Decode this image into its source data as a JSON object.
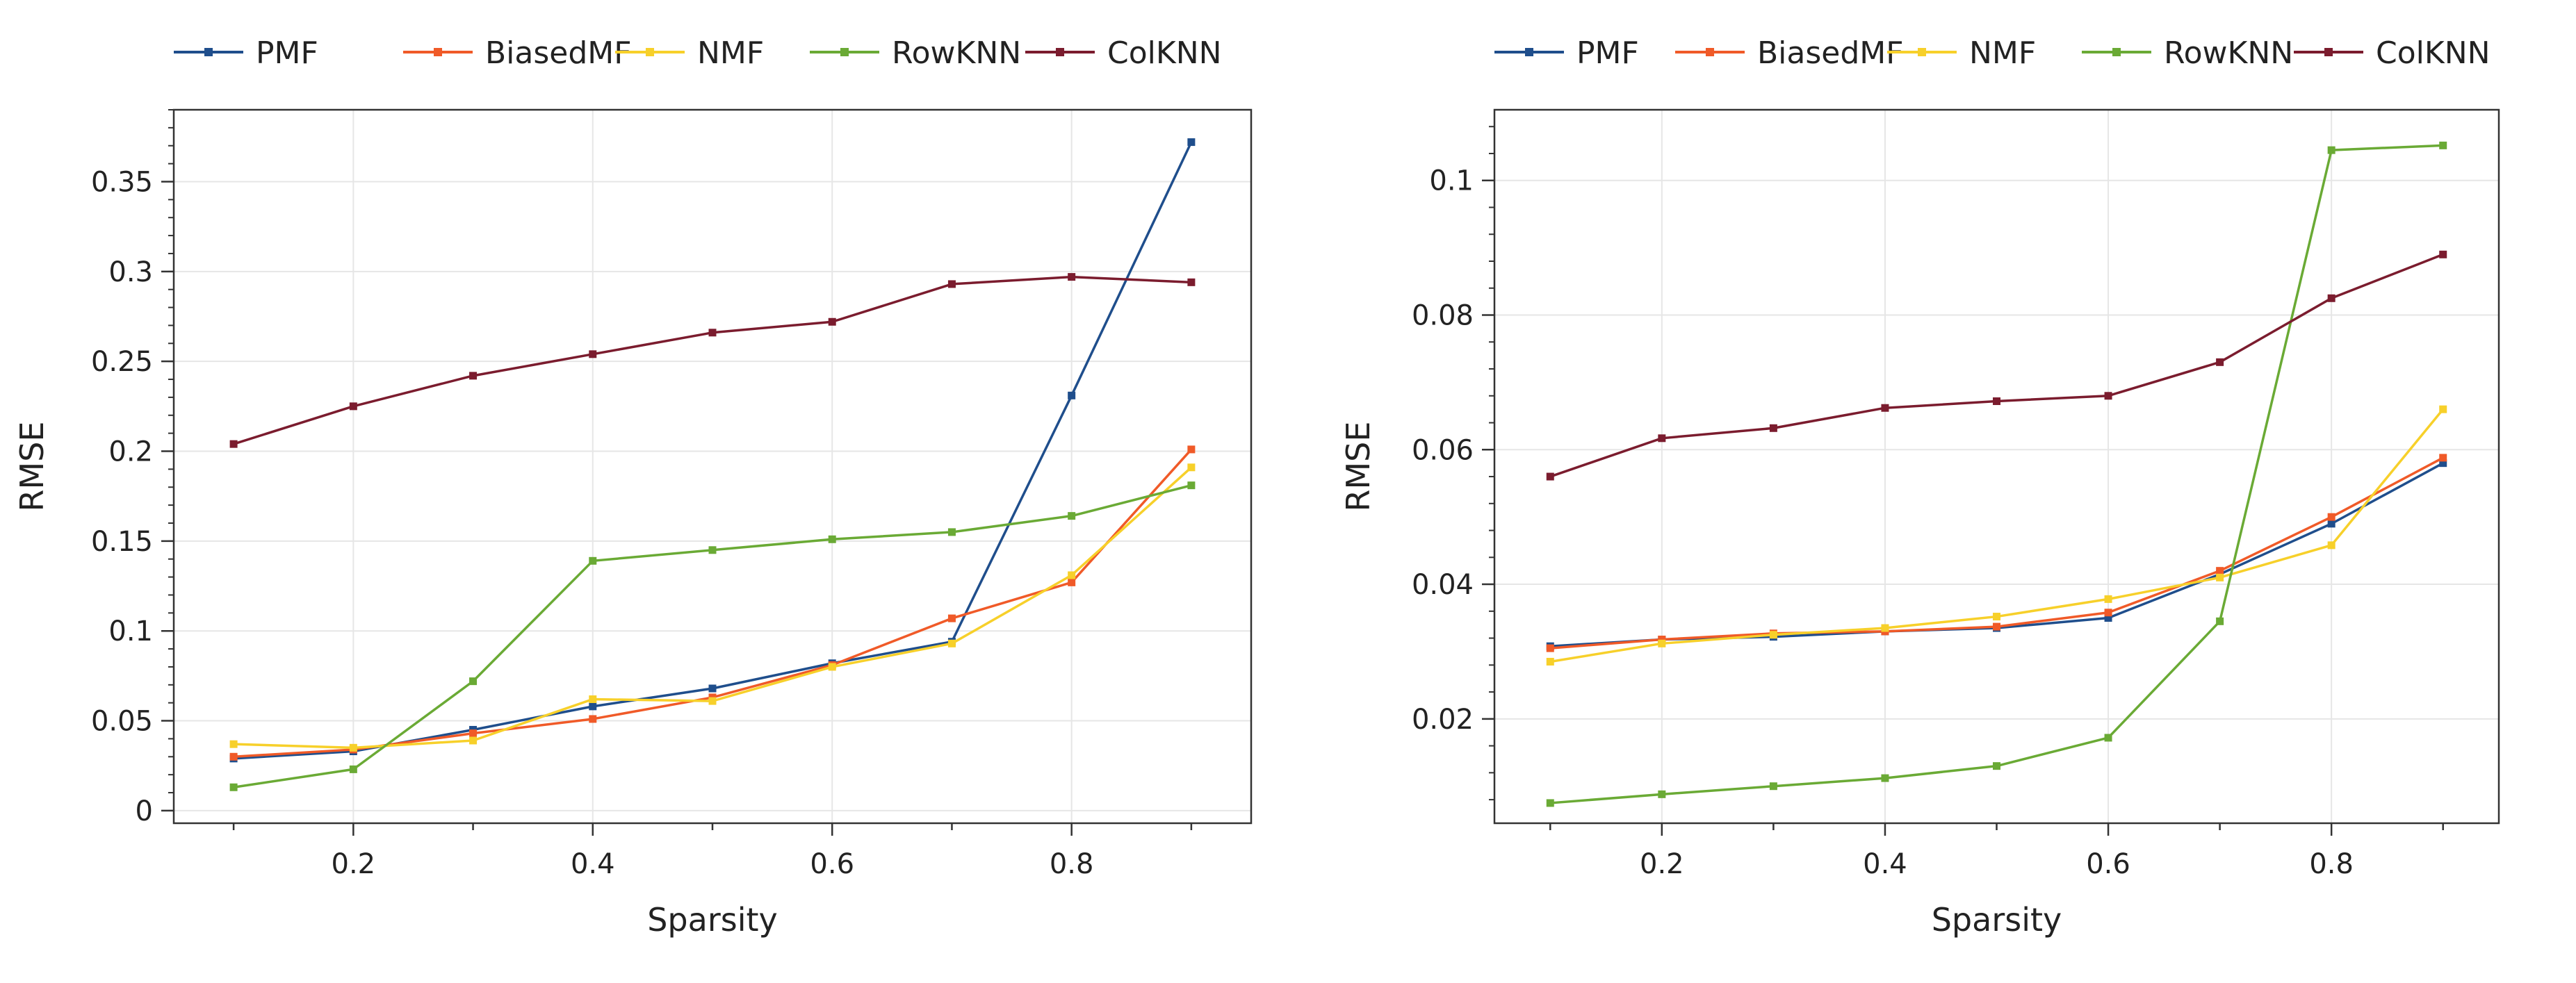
{
  "chart_data": [
    {
      "type": "line",
      "title": "",
      "xlabel": "Sparsity",
      "ylabel": "RMSE",
      "xlim": [
        0.05,
        0.95
      ],
      "ylim": [
        -0.007,
        0.39
      ],
      "xticks": [
        0.2,
        0.4,
        0.6,
        0.8
      ],
      "xtick_labels": [
        "0.2",
        "0.4",
        "0.6",
        "0.8"
      ],
      "yticks": [
        0,
        0.05,
        0.1,
        0.15,
        0.2,
        0.25,
        0.3,
        0.35
      ],
      "ytick_labels": [
        "0",
        "0.05",
        "0.1",
        "0.15",
        "0.2",
        "0.25",
        "0.3",
        "0.35"
      ],
      "grid": true,
      "legend_position": "top",
      "x": [
        0.1,
        0.2,
        0.3,
        0.4,
        0.5,
        0.6,
        0.7,
        0.8,
        0.9
      ],
      "series": [
        {
          "name": "PMF",
          "color": "#1f4e8c",
          "values": [
            0.029,
            0.033,
            0.045,
            0.058,
            0.068,
            0.082,
            0.094,
            0.231,
            0.372
          ]
        },
        {
          "name": "BiasedMF",
          "color": "#f05a28",
          "values": [
            0.03,
            0.034,
            0.043,
            0.051,
            0.063,
            0.081,
            0.107,
            0.127,
            0.201
          ]
        },
        {
          "name": "NMF",
          "color": "#f7d02a",
          "values": [
            0.037,
            0.035,
            0.039,
            0.062,
            0.061,
            0.08,
            0.093,
            0.131,
            0.191
          ]
        },
        {
          "name": "RowKNN",
          "color": "#6aaa35",
          "values": [
            0.013,
            0.023,
            0.072,
            0.139,
            0.145,
            0.151,
            0.155,
            0.164,
            0.181
          ]
        },
        {
          "name": "ColKNN",
          "color": "#7b1c2e",
          "values": [
            0.204,
            0.225,
            0.242,
            0.254,
            0.266,
            0.272,
            0.293,
            0.297,
            0.294
          ]
        }
      ]
    },
    {
      "type": "line",
      "title": "",
      "xlabel": "Sparsity",
      "ylabel": "RMSE",
      "xlim": [
        0.05,
        0.95
      ],
      "ylim": [
        0.0045,
        0.1105
      ],
      "xticks": [
        0.2,
        0.4,
        0.6,
        0.8
      ],
      "xtick_labels": [
        "0.2",
        "0.4",
        "0.6",
        "0.8"
      ],
      "yticks": [
        0.02,
        0.04,
        0.06,
        0.08,
        0.1
      ],
      "ytick_labels": [
        "0.02",
        "0.04",
        "0.06",
        "0.08",
        "0.1"
      ],
      "grid": true,
      "legend_position": "top",
      "x": [
        0.1,
        0.2,
        0.3,
        0.4,
        0.5,
        0.6,
        0.7,
        0.8,
        0.9
      ],
      "series": [
        {
          "name": "PMF",
          "color": "#1f4e8c",
          "values": [
            0.0308,
            0.0318,
            0.0322,
            0.033,
            0.0335,
            0.035,
            0.0415,
            0.049,
            0.058
          ]
        },
        {
          "name": "BiasedMF",
          "color": "#f05a28",
          "values": [
            0.0305,
            0.0318,
            0.0327,
            0.033,
            0.0337,
            0.0358,
            0.042,
            0.05,
            0.0588
          ]
        },
        {
          "name": "NMF",
          "color": "#f7d02a",
          "values": [
            0.0285,
            0.0312,
            0.0325,
            0.0335,
            0.0352,
            0.0378,
            0.041,
            0.0458,
            0.066
          ]
        },
        {
          "name": "RowKNN",
          "color": "#6aaa35",
          "values": [
            0.0075,
            0.0088,
            0.01,
            0.0112,
            0.013,
            0.0172,
            0.0345,
            0.1045,
            0.1052
          ]
        },
        {
          "name": "ColKNN",
          "color": "#7b1c2e",
          "values": [
            0.056,
            0.0617,
            0.0632,
            0.0662,
            0.0672,
            0.068,
            0.073,
            0.0825,
            0.089
          ]
        }
      ]
    }
  ]
}
